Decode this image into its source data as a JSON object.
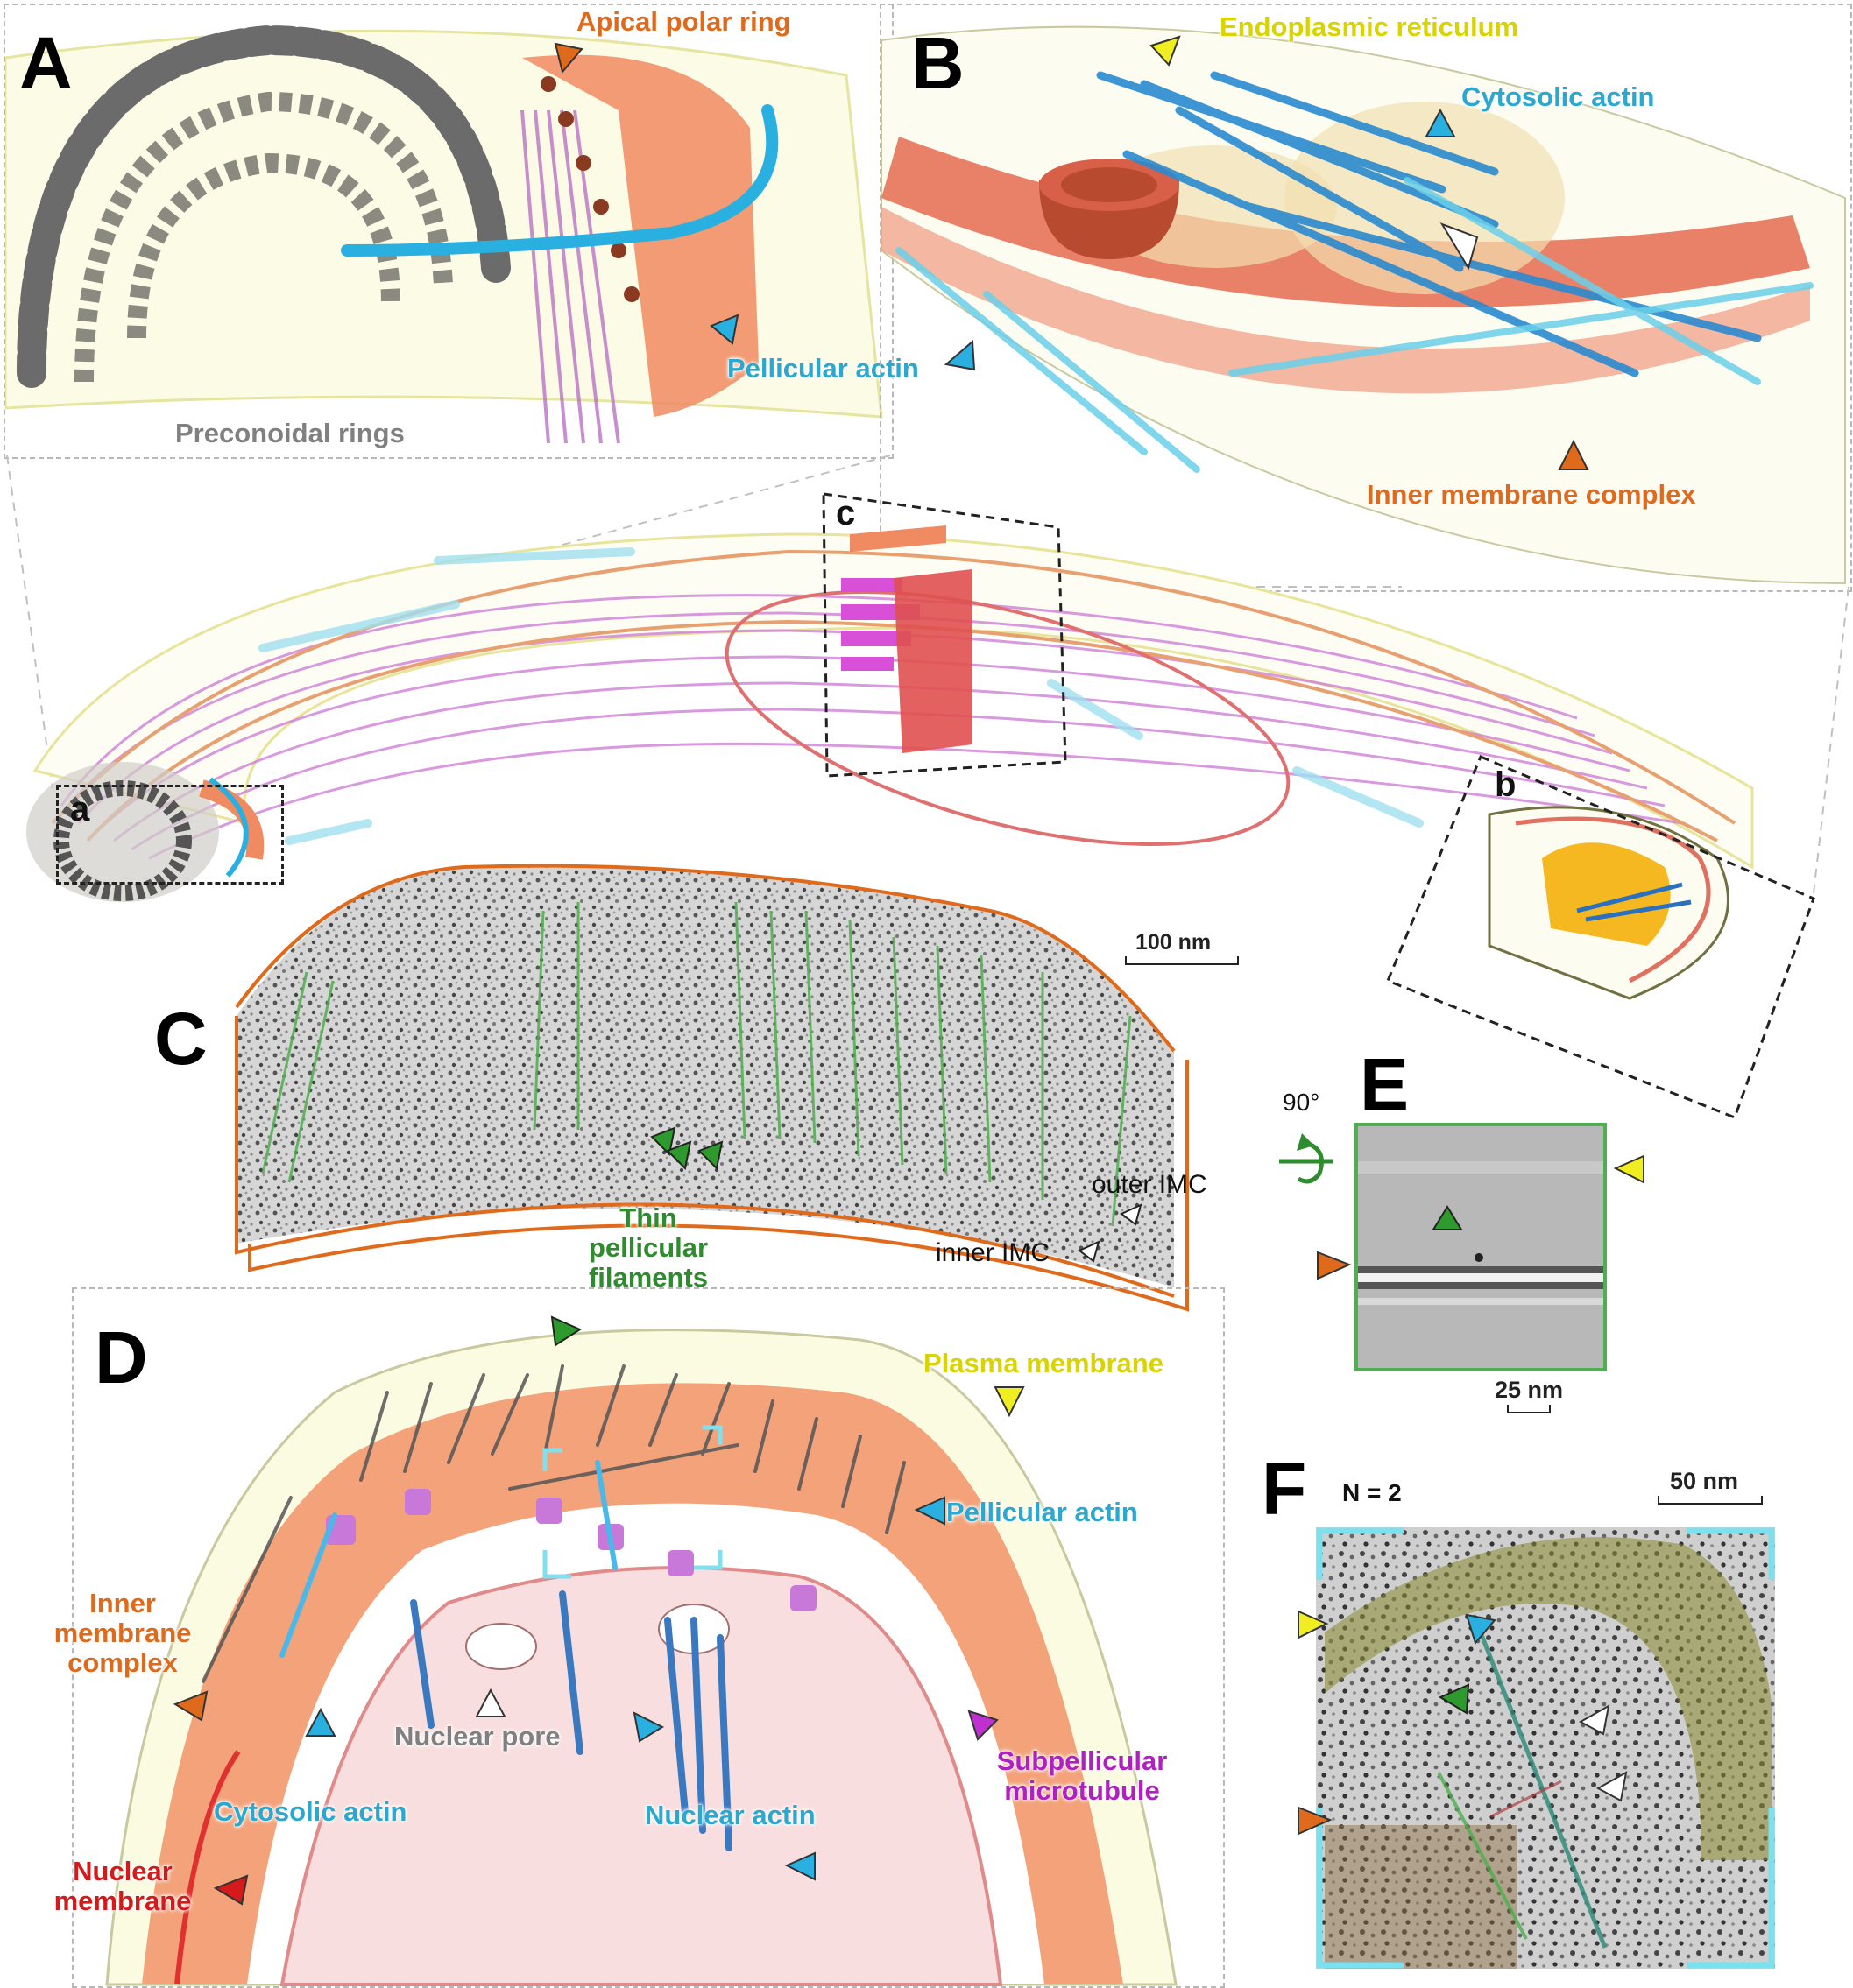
{
  "panels": {
    "A": "A",
    "B": "B",
    "C": "C",
    "D": "D",
    "E": "E",
    "F": "F"
  },
  "overview": {
    "sub_a": "a",
    "sub_b": "b",
    "sub_c": "c"
  },
  "panel_A": {
    "apical_polar_ring": "Apical polar ring",
    "pellicular_actin": "Pellicular actin",
    "preconoidal_rings": "Preconoidal rings"
  },
  "panel_B": {
    "endoplasmic_reticulum": "Endoplasmic reticulum",
    "cytosolic_actin": "Cytosolic actin",
    "inner_membrane_complex": "Inner membrane complex"
  },
  "panel_C": {
    "scale": "100 nm",
    "thin_pellicular_filaments": [
      "Thin",
      "pellicular",
      "filaments"
    ],
    "outer_imc": "outer IMC",
    "inner_imc": "inner IMC"
  },
  "panel_E": {
    "rotation": "90°",
    "scale": "25 nm"
  },
  "panel_D": {
    "plasma_membrane": "Plasma membrane",
    "pellicular_actin": "Pellicular actin",
    "inner_membrane_complex": [
      "Inner",
      "membrane",
      "complex"
    ],
    "nuclear_pore": "Nuclear pore",
    "cytosolic_actin": "Cytosolic actin",
    "nuclear_actin": "Nuclear actin",
    "subpellicular_microtubule": [
      "Subpellicular",
      "microtubule"
    ],
    "nuclear_membrane": [
      "Nuclear",
      "membrane"
    ]
  },
  "panel_F": {
    "n": "N = 2",
    "scale": "50 nm"
  },
  "colors": {
    "orange": "#e06a1c",
    "cyan": "#2aa8d0",
    "yellow": "#d9d400",
    "green": "#2e8b2e",
    "grey": "#808080",
    "magenta": "#b020c0",
    "red": "#d41a1a",
    "white_arrow": "#ffffff"
  }
}
